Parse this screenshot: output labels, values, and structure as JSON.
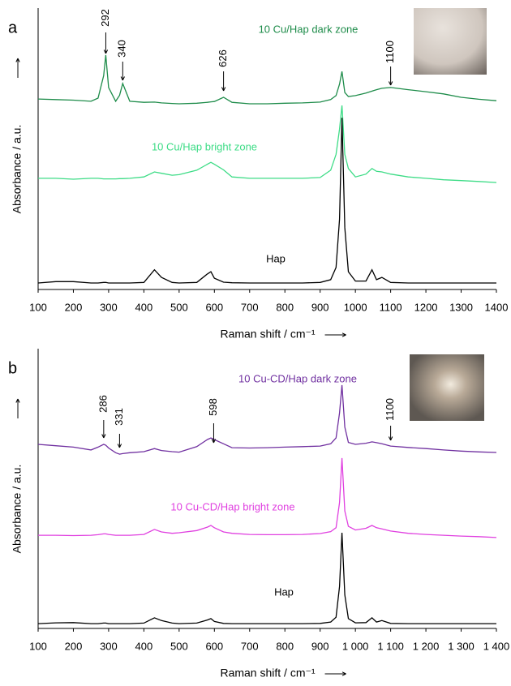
{
  "chart_data": [
    {
      "type": "line",
      "panel_label": "a",
      "x_label": "Raman shift / cm⁻¹",
      "y_label": "Absorbance / a.u.",
      "x": [
        100,
        150,
        200,
        250,
        270,
        286,
        292,
        300,
        320,
        331,
        340,
        360,
        400,
        430,
        450,
        480,
        500,
        550,
        580,
        590,
        600,
        626,
        650,
        700,
        750,
        800,
        850,
        900,
        930,
        945,
        955,
        962,
        970,
        980,
        1000,
        1030,
        1047,
        1060,
        1075,
        1100,
        1150,
        1200,
        1250,
        1300,
        1350,
        1400
      ],
      "xlim": [
        100,
        1400
      ],
      "xticks": [
        100,
        200,
        300,
        400,
        500,
        600,
        700,
        800,
        900,
        1000,
        1100,
        1200,
        1300,
        1400
      ],
      "ylim": [
        0,
        100
      ],
      "series": [
        {
          "name": "10 Cu/Hap dark zone",
          "color": "#1e8c4a",
          "values": [
            67.7,
            67.5,
            67.3,
            66.9,
            68,
            76,
            83.3,
            71.8,
            66.9,
            69,
            73.2,
            66.9,
            66.5,
            66.6,
            66.3,
            66.1,
            66,
            66.2,
            66.5,
            66.7,
            66.8,
            68.3,
            66.5,
            66,
            66,
            66.2,
            66.3,
            66.6,
            67.5,
            68.9,
            73,
            77.5,
            70,
            68.6,
            68.9,
            69.8,
            70.5,
            71,
            71.5,
            71.8,
            71,
            70.3,
            69.5,
            68.3,
            67.6,
            67.1
          ]
        },
        {
          "name": "10 Cu/Hap bright zone",
          "color": "#3ddc86",
          "values": [
            39.5,
            39.5,
            39.2,
            39.5,
            39.5,
            39.3,
            39.3,
            39.3,
            39.3,
            39.4,
            39.4,
            39.5,
            40,
            41.8,
            41.3,
            40.6,
            40.8,
            42.4,
            44.5,
            45.2,
            44.5,
            42.5,
            40,
            39.5,
            39.5,
            39.5,
            39.5,
            39.8,
            42.4,
            48,
            57,
            65.4,
            48,
            43,
            40,
            41,
            43,
            42,
            41.8,
            41,
            40,
            39.5,
            39,
            38.7,
            38.4,
            38
          ]
        },
        {
          "name": "Hap",
          "color": "#000000",
          "values": [
            2.3,
            2.8,
            2.8,
            2.3,
            2.3,
            2.5,
            2.5,
            2.3,
            2.3,
            2.3,
            2.3,
            2.3,
            2.5,
            7,
            4.3,
            2.5,
            2.3,
            2.5,
            5.5,
            6.3,
            4,
            2.6,
            2.4,
            2.3,
            2.3,
            2.3,
            2.3,
            2.5,
            3.5,
            7.8,
            25,
            61,
            22,
            6.3,
            3,
            3,
            7,
            3.5,
            4.3,
            2.5,
            2.3,
            2.3,
            2.3,
            2.3,
            2.3,
            2.3
          ]
        }
      ],
      "annotations": [
        {
          "label": "292",
          "x": 292
        },
        {
          "label": "340",
          "x": 340
        },
        {
          "label": "626",
          "x": 626
        },
        {
          "label": "1100",
          "x": 1100
        }
      ]
    },
    {
      "type": "line",
      "panel_label": "b",
      "x_label": "Raman shift / cm⁻¹",
      "y_label": "Absorbance / a.u.",
      "x": [
        100,
        150,
        200,
        250,
        270,
        286,
        292,
        300,
        320,
        331,
        340,
        360,
        400,
        430,
        450,
        480,
        500,
        550,
        580,
        590,
        600,
        626,
        650,
        700,
        750,
        800,
        850,
        900,
        930,
        945,
        955,
        962,
        970,
        980,
        1000,
        1030,
        1047,
        1060,
        1075,
        1100,
        1150,
        1200,
        1250,
        1300,
        1350,
        1400
      ],
      "xlim": [
        100,
        1400
      ],
      "xticks": [
        100,
        200,
        300,
        400,
        500,
        600,
        700,
        800,
        900,
        {
          "value": 1000,
          "label": "1 000"
        },
        {
          "value": 1100,
          "label": "1 100"
        },
        {
          "value": 1200,
          "label": "1 200"
        },
        {
          "value": 1300,
          "label": "1 300"
        },
        {
          "value": 1400,
          "label": "1 400"
        }
      ],
      "ylim": [
        0,
        100
      ],
      "series": [
        {
          "name": "10 Cu-CD/Hap dark zone",
          "color": "#7030a0",
          "values": [
            65.8,
            65.3,
            64.8,
            63.8,
            64.8,
            65.8,
            65.5,
            64.5,
            62.8,
            62.3,
            62.5,
            62.8,
            63.2,
            64.3,
            63.6,
            63.2,
            63,
            65,
            67.5,
            68.1,
            67.5,
            66,
            64.6,
            64.5,
            64.6,
            64.8,
            65,
            65.2,
            66,
            68.1,
            77,
            87,
            72,
            66.5,
            65.8,
            66.2,
            66.7,
            66.4,
            66,
            65.2,
            64.7,
            64.3,
            63.8,
            63.4,
            63.1,
            62.9
          ]
        },
        {
          "name": "10 Cu-CD/Hap bright zone",
          "color": "#e040e0",
          "values": [
            33.3,
            33.3,
            33.2,
            33.3,
            33.5,
            33.8,
            33.8,
            33.6,
            33.3,
            33.3,
            33.3,
            33.3,
            33.6,
            35.4,
            34.5,
            34,
            34.2,
            35,
            36.2,
            36.8,
            36,
            34.5,
            34,
            33.6,
            33.5,
            33.5,
            33.6,
            33.9,
            34.6,
            36,
            45,
            60.9,
            42,
            36.5,
            35.2,
            35.8,
            36.8,
            36,
            35.6,
            34.8,
            34,
            33.6,
            33.3,
            33,
            32.8,
            32.5
          ]
        },
        {
          "name": "Hap",
          "color": "#000000",
          "values": [
            1.7,
            2,
            2.1,
            1.7,
            1.7,
            1.9,
            1.9,
            1.7,
            1.7,
            1.7,
            1.7,
            1.7,
            1.9,
            3.8,
            2.8,
            1.9,
            1.7,
            1.9,
            3,
            3.5,
            2.5,
            1.8,
            1.7,
            1.7,
            1.7,
            1.7,
            1.7,
            1.8,
            2.3,
            4,
            15,
            34.2,
            12,
            3.5,
            2,
            2.1,
            3.8,
            2.3,
            2.8,
            1.8,
            1.7,
            1.7,
            1.7,
            1.7,
            1.7,
            1.7
          ]
        }
      ],
      "annotations": [
        {
          "label": "286",
          "x": 286
        },
        {
          "label": "331",
          "x": 331
        },
        {
          "label": "598",
          "x": 598
        },
        {
          "label": "1100",
          "x": 1100
        }
      ]
    }
  ]
}
